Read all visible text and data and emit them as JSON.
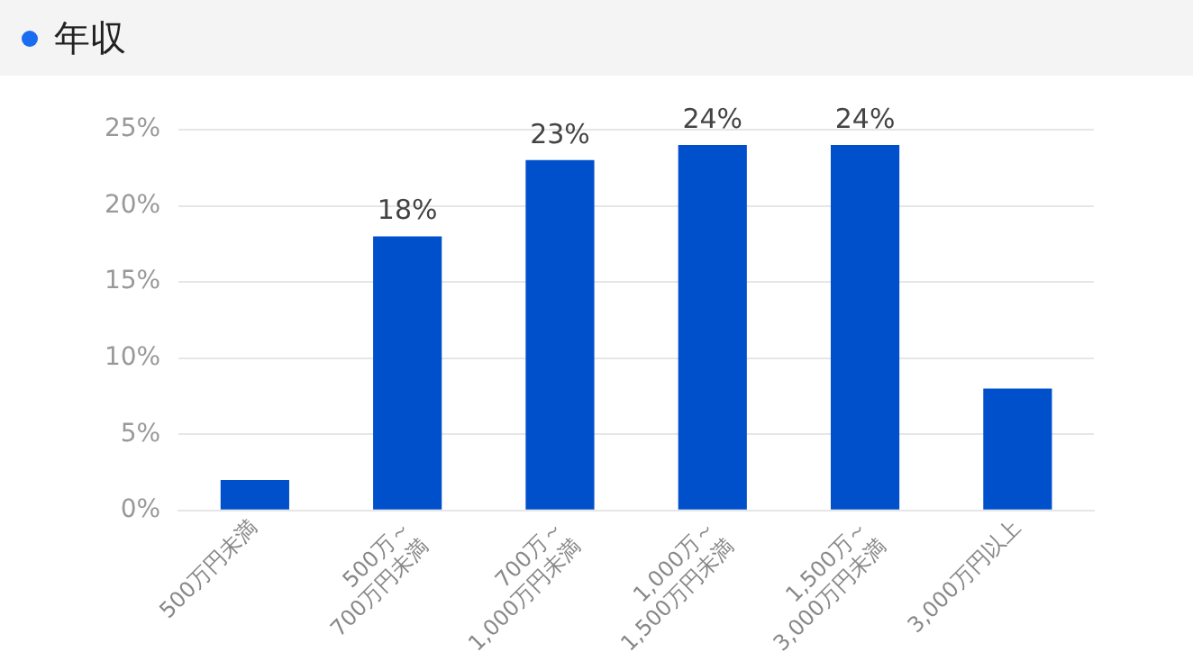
{
  "chart_data": {
    "type": "bar",
    "title": "年収",
    "categories": [
      "500万円未満",
      "500万～\n700万円未満",
      "700万～\n1,000万円未満",
      "1,000万～\n1,500万円未満",
      "1,500万～\n3,000万円未満",
      "3,000万円以上"
    ],
    "values": [
      2,
      18,
      23,
      24,
      24,
      8
    ],
    "value_labels": [
      null,
      "18%",
      "23%",
      "24%",
      "24%",
      null
    ],
    "color": "#0050cc",
    "ylim": [
      0,
      25
    ],
    "yticks": [
      {
        "value": 0,
        "label": "0%"
      },
      {
        "value": 5,
        "label": "5%"
      },
      {
        "value": 10,
        "label": "10%"
      },
      {
        "value": 15,
        "label": "15%"
      },
      {
        "value": 20,
        "label": "20%"
      },
      {
        "value": 25,
        "label": "25%"
      }
    ],
    "grid": "y",
    "legend": false
  }
}
